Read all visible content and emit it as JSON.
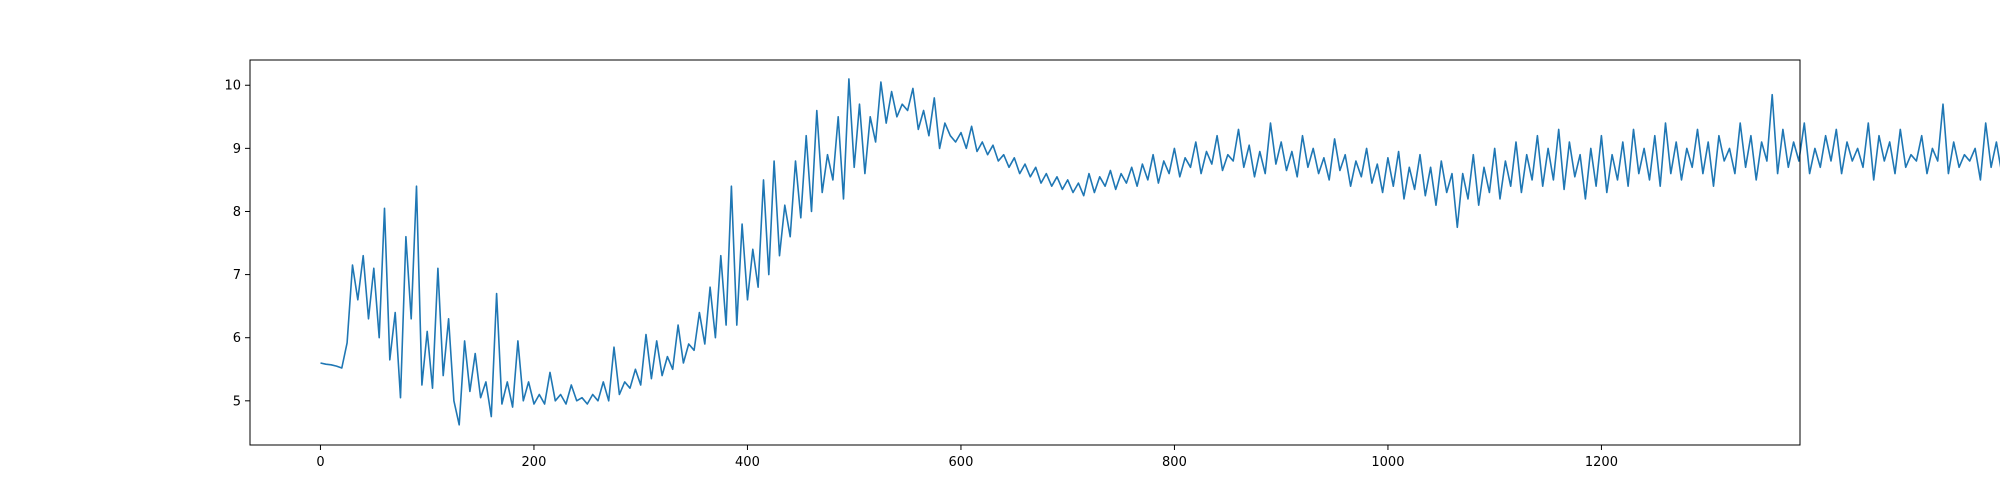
{
  "chart_data": {
    "type": "line",
    "title": "",
    "xlabel": "",
    "ylabel": "",
    "xlim": [
      -66,
      1386
    ],
    "ylim": [
      4.3,
      10.4
    ],
    "x_ticks": [
      0,
      200,
      400,
      600,
      800,
      1000,
      1200
    ],
    "x_tick_labels": [
      "0",
      "200",
      "400",
      "600",
      "800",
      "1000",
      "1200"
    ],
    "y_ticks": [
      5,
      6,
      7,
      8,
      9,
      10
    ],
    "y_tick_labels": [
      "5",
      "6",
      "7",
      "8",
      "9",
      "10"
    ],
    "grid": false,
    "legend": "none",
    "series": [
      {
        "color": "#1f77b4",
        "x_start": 0,
        "x_step": 5,
        "values": [
          5.6,
          5.58,
          5.57,
          5.55,
          5.52,
          5.92,
          7.15,
          6.6,
          7.3,
          6.3,
          7.1,
          6.0,
          8.05,
          5.65,
          6.4,
          5.05,
          7.6,
          6.3,
          8.4,
          5.25,
          6.1,
          5.2,
          7.1,
          5.4,
          6.3,
          5.0,
          4.62,
          5.95,
          5.15,
          5.75,
          5.05,
          5.3,
          4.75,
          6.7,
          4.95,
          5.3,
          4.9,
          5.95,
          5.0,
          5.3,
          4.95,
          5.1,
          4.95,
          5.45,
          5.0,
          5.1,
          4.95,
          5.25,
          5.0,
          5.05,
          4.95,
          5.1,
          5.0,
          5.3,
          5.0,
          5.85,
          5.1,
          5.3,
          5.2,
          5.5,
          5.25,
          6.05,
          5.35,
          5.95,
          5.4,
          5.7,
          5.5,
          6.2,
          5.6,
          5.9,
          5.8,
          6.4,
          5.9,
          6.8,
          6.0,
          7.3,
          6.2,
          8.4,
          6.2,
          7.8,
          6.6,
          7.4,
          6.8,
          8.5,
          7.0,
          8.8,
          7.3,
          8.1,
          7.6,
          8.8,
          7.9,
          9.2,
          8.0,
          9.6,
          8.3,
          8.9,
          8.5,
          9.5,
          8.2,
          10.1,
          8.7,
          9.7,
          8.6,
          9.5,
          9.1,
          10.05,
          9.4,
          9.9,
          9.5,
          9.7,
          9.6,
          9.95,
          9.3,
          9.6,
          9.2,
          9.8,
          9.0,
          9.4,
          9.2,
          9.1,
          9.25,
          9.0,
          9.35,
          8.95,
          9.1,
          8.9,
          9.05,
          8.8,
          8.9,
          8.7,
          8.85,
          8.6,
          8.75,
          8.55,
          8.7,
          8.45,
          8.6,
          8.4,
          8.55,
          8.35,
          8.5,
          8.3,
          8.45,
          8.25,
          8.6,
          8.3,
          8.55,
          8.4,
          8.65,
          8.35,
          8.6,
          8.45,
          8.7,
          8.4,
          8.75,
          8.5,
          8.9,
          8.45,
          8.8,
          8.6,
          9.0,
          8.55,
          8.85,
          8.7,
          9.1,
          8.6,
          8.95,
          8.75,
          9.2,
          8.65,
          8.9,
          8.8,
          9.3,
          8.7,
          9.05,
          8.55,
          8.95,
          8.6,
          9.4,
          8.75,
          9.1,
          8.65,
          8.95,
          8.55,
          9.2,
          8.7,
          9.0,
          8.6,
          8.85,
          8.5,
          9.15,
          8.65,
          8.9,
          8.4,
          8.8,
          8.55,
          9.0,
          8.45,
          8.75,
          8.3,
          8.85,
          8.4,
          8.95,
          8.2,
          8.7,
          8.35,
          8.9,
          8.25,
          8.7,
          8.1,
          8.8,
          8.3,
          8.6,
          7.75,
          8.6,
          8.2,
          8.9,
          8.1,
          8.7,
          8.3,
          9.0,
          8.2,
          8.8,
          8.4,
          9.1,
          8.3,
          8.9,
          8.5,
          9.2,
          8.4,
          9.0,
          8.5,
          9.3,
          8.35,
          9.1,
          8.55,
          8.9,
          8.2,
          9.0,
          8.4,
          9.2,
          8.3,
          8.9,
          8.5,
          9.1,
          8.4,
          9.3,
          8.6,
          9.0,
          8.5,
          9.2,
          8.4,
          9.4,
          8.6,
          9.1,
          8.5,
          9.0,
          8.7,
          9.3,
          8.6,
          9.1,
          8.4,
          9.2,
          8.8,
          9.0,
          8.6,
          9.4,
          8.7,
          9.2,
          8.5,
          9.1,
          8.8,
          9.85,
          8.6,
          9.3,
          8.7,
          9.1,
          8.8,
          9.4,
          8.6,
          9.0,
          8.7,
          9.2,
          8.8,
          9.3,
          8.6,
          9.1,
          8.8,
          9.0,
          8.7,
          9.4,
          8.5,
          9.2,
          8.8,
          9.1,
          8.6,
          9.3,
          8.7,
          8.9,
          8.8,
          9.2,
          8.6,
          9.0,
          8.8,
          9.7,
          8.6,
          9.1,
          8.7,
          8.9,
          8.8,
          9.0,
          8.5,
          9.4,
          8.7,
          9.1,
          8.6,
          8.9,
          8.8,
          9.2,
          8.5,
          8.95,
          8.7,
          9.1,
          8.45,
          8.85
        ]
      }
    ]
  }
}
